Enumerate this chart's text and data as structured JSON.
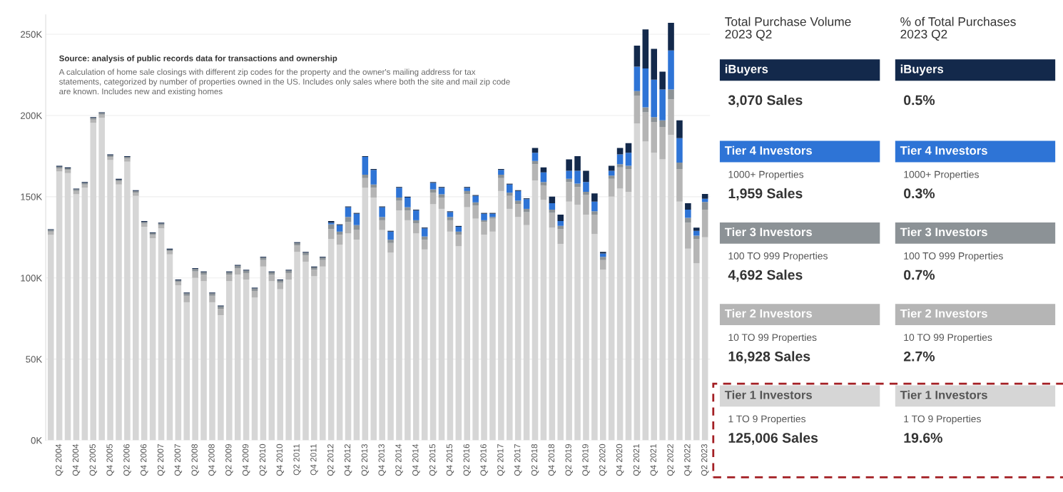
{
  "chart_data": [
    {
      "type": "bar",
      "stacked": true,
      "annotations": [
        "Source: analysis of public records data for transactions and ownership",
        "A calculation of home sale closings with different zip codes for the property and the owner's mailing address for tax\nstatements, categorized by number of properties owned in the US. Includes only sales where both the site and mail zip code\nare known. Includes new and existing homes"
      ],
      "categories": [
        null,
        "Q2 2004",
        null,
        "Q4 2004",
        null,
        "Q2 2005",
        null,
        "Q4 2005",
        null,
        "Q2 2006",
        null,
        "Q4 2006",
        null,
        "Q2 2007",
        null,
        "Q4 2007",
        null,
        "Q2 2008",
        null,
        "Q4 2008",
        null,
        "Q2 2009",
        null,
        "Q4 2009",
        null,
        "Q2 2010",
        null,
        "Q4 2010",
        null,
        "Q2 2011",
        null,
        "Q4 2011",
        null,
        "Q2 2012",
        null,
        "Q4 2012",
        null,
        "Q2 2013",
        null,
        "Q4 2013",
        null,
        "Q2 2014",
        null,
        "Q4 2014",
        null,
        "Q2 2015",
        null,
        "Q4 2015",
        null,
        "Q2 2016",
        null,
        "Q4 2016",
        null,
        "Q2 2017",
        null,
        "Q4 2017",
        null,
        "Q2 2018",
        null,
        "Q4 2018",
        null,
        "Q2 2019",
        null,
        "Q4 2019",
        null,
        "Q2 2020",
        null,
        "Q4 2020",
        null,
        "Q2 2021",
        null,
        "Q4 2021",
        null,
        "Q2 2022",
        null,
        "Q4 2022",
        null,
        "Q2 2023"
      ],
      "series": [
        {
          "color": "#d6d6d6",
          "values": [
            126.5,
            165.5,
            164.5,
            151.5,
            155.5,
            195.5,
            198.5,
            172.5,
            157.5,
            171.5,
            150.5,
            131.5,
            124.5,
            130.5,
            114.5,
            95.5,
            85,
            100,
            98,
            85,
            77,
            98,
            102,
            99,
            88,
            107,
            98,
            93,
            99,
            116,
            110,
            101,
            107,
            124,
            120.5,
            127.5,
            123.5,
            155.5,
            149.5,
            129.5,
            115.5,
            141.5,
            135.5,
            127.5,
            117.5,
            145.5,
            142.5,
            128.5,
            119.5,
            143.5,
            136.5,
            126.5,
            128.5,
            153.5,
            142.5,
            137.5,
            132.5,
            160,
            148,
            131,
            121,
            147,
            145,
            139,
            127,
            105,
            150,
            155,
            153,
            195,
            184,
            177,
            173,
            188,
            147,
            118,
            109,
            125
          ]
        },
        {
          "color": "#b5b5b5",
          "values": [
            2,
            2,
            2,
            2,
            2,
            2,
            2,
            2,
            2,
            2,
            2,
            2,
            2,
            2,
            2,
            2,
            4,
            4,
            4,
            4,
            4,
            4,
            4,
            4,
            4,
            4,
            4,
            4,
            4,
            4,
            4,
            4,
            4,
            6,
            6,
            7,
            6,
            6,
            6,
            6,
            6,
            6,
            6,
            6,
            6,
            7,
            7,
            7,
            7,
            8,
            8,
            8,
            8,
            8,
            8,
            8,
            8,
            10,
            9,
            9,
            9,
            12,
            11,
            12,
            12,
            6,
            11,
            13,
            14,
            17,
            18,
            19,
            20,
            22,
            20,
            16,
            15,
            17
          ]
        },
        {
          "color": "#8c9296",
          "values": [
            1,
            1,
            1,
            1,
            1,
            1,
            1,
            1,
            1,
            1,
            1,
            1,
            1,
            1,
            1,
            1,
            1.5,
            1.5,
            1.5,
            1.5,
            1.5,
            1.5,
            1.5,
            1.5,
            1.5,
            1.5,
            1.5,
            1.5,
            1.5,
            1.5,
            1.5,
            1.5,
            1.5,
            3,
            2,
            3,
            3,
            2,
            2,
            2,
            2,
            2,
            2,
            2,
            2,
            2,
            2,
            2,
            2,
            2,
            2,
            1,
            1,
            2,
            2,
            2,
            2,
            2,
            2,
            2,
            2,
            2,
            2,
            2,
            2,
            2,
            2,
            2,
            2,
            3,
            3,
            3,
            4,
            6,
            4,
            3,
            2,
            4.7
          ]
        },
        {
          "color": "#2e74d6",
          "values": [
            0,
            0,
            0,
            0,
            0,
            0,
            0,
            0,
            0,
            0,
            0,
            0,
            0,
            0,
            0,
            0,
            0,
            0,
            0,
            0,
            0,
            0,
            0,
            0,
            0,
            0,
            0,
            0,
            0,
            0,
            0,
            0,
            0,
            1,
            4,
            6,
            7,
            11,
            9,
            6,
            5,
            6,
            6,
            6,
            5,
            4,
            4,
            3,
            3,
            2,
            4,
            4,
            2,
            3,
            5,
            6,
            6,
            5,
            6,
            4,
            3,
            5,
            8,
            6,
            6,
            2,
            3,
            6,
            8,
            15,
            24,
            23,
            19,
            24,
            15,
            5,
            3,
            2
          ]
        },
        {
          "color": "#13294b",
          "values": [
            0.5,
            0.5,
            0.5,
            0.5,
            0.5,
            0.5,
            0.5,
            0.5,
            0.5,
            0.5,
            0.5,
            0.5,
            0.5,
            0.5,
            0.5,
            0.5,
            0.5,
            0.5,
            0.5,
            0.5,
            0.5,
            0.5,
            0.5,
            0.5,
            0.5,
            0.5,
            0.5,
            0.5,
            0.5,
            0.5,
            0.5,
            0.5,
            0.5,
            1,
            0.5,
            0.5,
            0.5,
            0.5,
            0.5,
            0.5,
            0.5,
            0.5,
            0.5,
            0.5,
            0.5,
            0.5,
            0.5,
            0.5,
            0.5,
            0.5,
            0.5,
            0.5,
            0.5,
            0.5,
            0.5,
            0.5,
            0.5,
            3,
            3,
            4,
            4,
            7,
            9,
            7,
            5,
            1,
            3,
            4,
            6,
            13,
            24,
            19,
            11,
            17,
            11,
            4,
            2,
            3
          ]
        }
      ],
      "ylim": [
        0,
        262
      ],
      "yticks": [
        {
          "value": 0,
          "label": "0K"
        },
        {
          "value": 50,
          "label": "50K"
        },
        {
          "value": 100,
          "label": "100K"
        },
        {
          "value": 150,
          "label": "150K"
        },
        {
          "value": 200,
          "label": "200K"
        },
        {
          "value": 250,
          "label": "250K"
        }
      ],
      "grid": "y"
    },
    {
      "type": "other",
      "title": "Total Purchase Volume\n2023 Q2",
      "categories": [
        "iBuyers",
        "Tier 4 Investors",
        "Tier 3 Investors",
        "Tier 2 Investors",
        "Tier 1 Investors"
      ],
      "colors": [
        "#13294b",
        "#2e74d6",
        "#8c9296",
        "#b5b5b5",
        "#d6d6d6"
      ],
      "annotations": [
        "1000+ Properties",
        "100 TO 999 Properties",
        "10 TO 99 Properties",
        "1 TO 9 Properties"
      ],
      "value_labels": [
        "3,070 Sales",
        "1,959 Sales",
        "4,692 Sales",
        "16,928 Sales",
        "125,006 Sales"
      ]
    },
    {
      "type": "other",
      "title": "% of Total Purchases\n2023 Q2",
      "categories": [
        "iBuyers",
        "Tier 4 Investors",
        "Tier 3 Investors",
        "Tier 2 Investors",
        "Tier 1 Investors"
      ],
      "colors": [
        "#13294b",
        "#2e74d6",
        "#8c9296",
        "#b5b5b5",
        "#d6d6d6"
      ],
      "annotations": [
        "1000+ Properties",
        "100 TO 999 Properties",
        "10 TO 99 Properties",
        "1 TO 9 Properties"
      ],
      "value_labels": [
        "0.5%",
        "0.3%",
        "0.7%",
        "2.7%",
        "19.6%"
      ]
    }
  ]
}
